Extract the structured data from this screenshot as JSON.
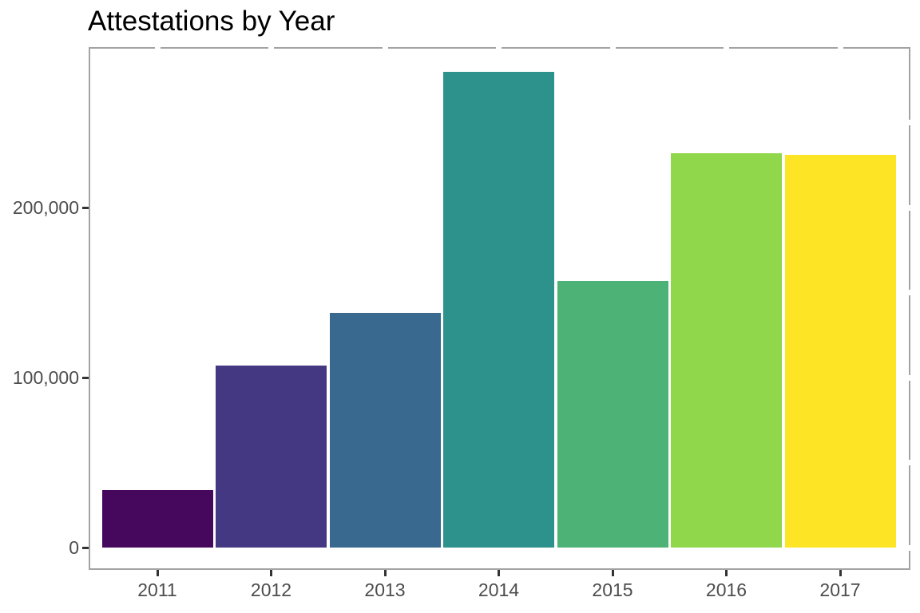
{
  "title": "Attestations by Year",
  "chart_data": {
    "type": "bar",
    "title": "Attestations by Year",
    "categories": [
      "2011",
      "2012",
      "2013",
      "2014",
      "2015",
      "2016",
      "2017"
    ],
    "values": [
      34000,
      107000,
      138000,
      280000,
      157000,
      232000,
      231000
    ],
    "bar_colors": [
      "#46085c",
      "#453882",
      "#39698f",
      "#2d918c",
      "#4db276",
      "#90d74b",
      "#fde525"
    ],
    "xlabel": "",
    "ylabel": "",
    "ylim": [
      0,
      294000
    ],
    "yticks": [
      0,
      100000,
      200000
    ],
    "ytick_labels": [
      "0",
      "100,000",
      "200,000"
    ],
    "right_border_gap_interval": 50000,
    "right_border_gap_max": 250000,
    "grid": false,
    "legend": "none"
  },
  "colors": {
    "background": "#ffffff",
    "panel_border": "#a3a3a3",
    "tick_mark": "#333333",
    "axis_text": "#4d4d4d",
    "title_text": "#000000"
  }
}
